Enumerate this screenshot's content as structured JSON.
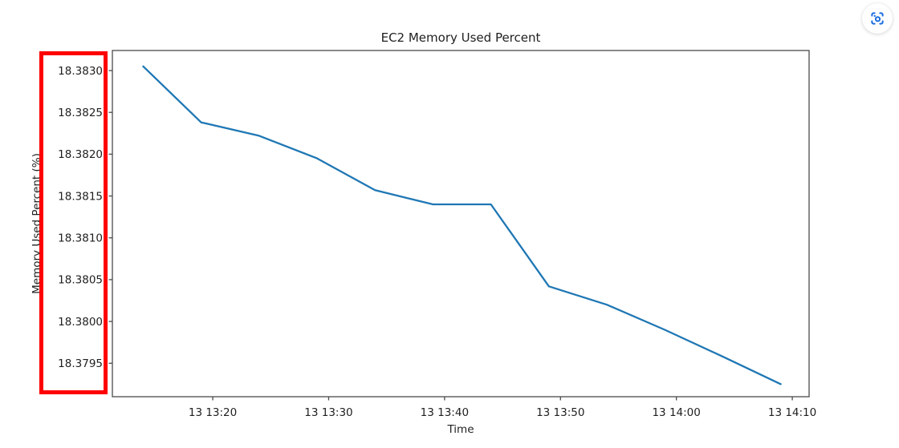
{
  "page": {
    "background": "#ffffff"
  },
  "toolbar": {
    "capture_button_color": "#1a6dde",
    "capture_button_background": "#ffffff"
  },
  "annotation_box": {
    "color": "#ff0000",
    "highlights": "y-axis tick labels"
  },
  "chart_data": {
    "type": "line",
    "title": "EC2 Memory Used Percent",
    "xlabel": "Time",
    "ylabel": "Memory Used Percent (%)",
    "line_color": "#1f77b4",
    "grid": false,
    "legend": "none",
    "x_tick_labels": [
      "13 13:20",
      "13 13:30",
      "13 13:40",
      "13 13:50",
      "13 14:00",
      "13 14:10"
    ],
    "x_tick_minutes": [
      20,
      30,
      40,
      50,
      60,
      70
    ],
    "y_tick_labels": [
      "18.3795",
      "18.3800",
      "18.3805",
      "18.3810",
      "18.3815",
      "18.3820",
      "18.3825",
      "18.3830"
    ],
    "y_ticks": [
      18.3795,
      18.38,
      18.3805,
      18.381,
      18.3815,
      18.382,
      18.3825,
      18.383
    ],
    "xlim_minutes": [
      11.34,
      71.45
    ],
    "ylim": [
      18.3791,
      18.38324
    ],
    "series": [
      {
        "name": "memory_used_percent",
        "x_labels": [
          "13 13:14",
          "13 13:19",
          "13 13:24",
          "13 13:29",
          "13 13:34",
          "13 13:39",
          "13 13:44",
          "13 13:49",
          "13 13:54",
          "13 13:59",
          "13 14:04",
          "13 14:09"
        ],
        "x_minutes": [
          14,
          19,
          24,
          29,
          34,
          39,
          44,
          49,
          54,
          59,
          64,
          69
        ],
        "values": [
          18.38305,
          18.38238,
          18.38222,
          18.38195,
          18.38157,
          18.3814,
          18.3814,
          18.38042,
          18.3802,
          18.3799,
          18.37958,
          18.37925
        ]
      }
    ]
  }
}
